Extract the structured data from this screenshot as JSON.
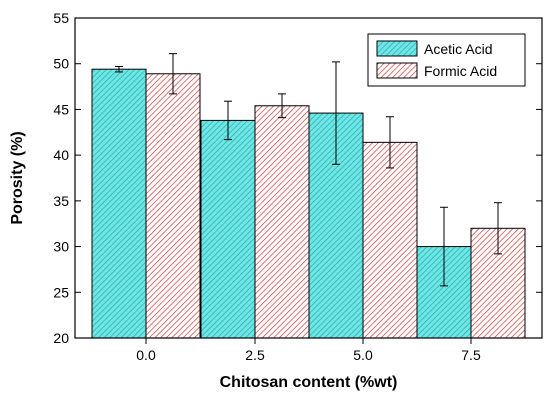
{
  "chart_data": {
    "type": "bar",
    "categories": [
      "0.0",
      "2.5",
      "5.0",
      "7.5"
    ],
    "series": [
      {
        "name": "Acetic Acid",
        "values": [
          49.4,
          43.8,
          44.6,
          30.0
        ],
        "errors": [
          0.3,
          2.1,
          5.6,
          4.3
        ],
        "color": "#6fe6e6",
        "hatch_color": "#2aa8a8"
      },
      {
        "name": "Formic Acid",
        "values": [
          48.9,
          45.4,
          41.4,
          32.0
        ],
        "errors": [
          2.2,
          1.3,
          2.8,
          2.8
        ],
        "color": "#ffffff",
        "hatch_color": "#d23838"
      }
    ],
    "xlabel": "Chitosan content (%wt)",
    "ylabel": "Porosity (%)",
    "ylim": [
      20,
      55
    ],
    "yticks": [
      "20",
      "25",
      "30",
      "35",
      "40",
      "45",
      "50",
      "55"
    ],
    "legend_position": "top-right",
    "grid": false
  }
}
